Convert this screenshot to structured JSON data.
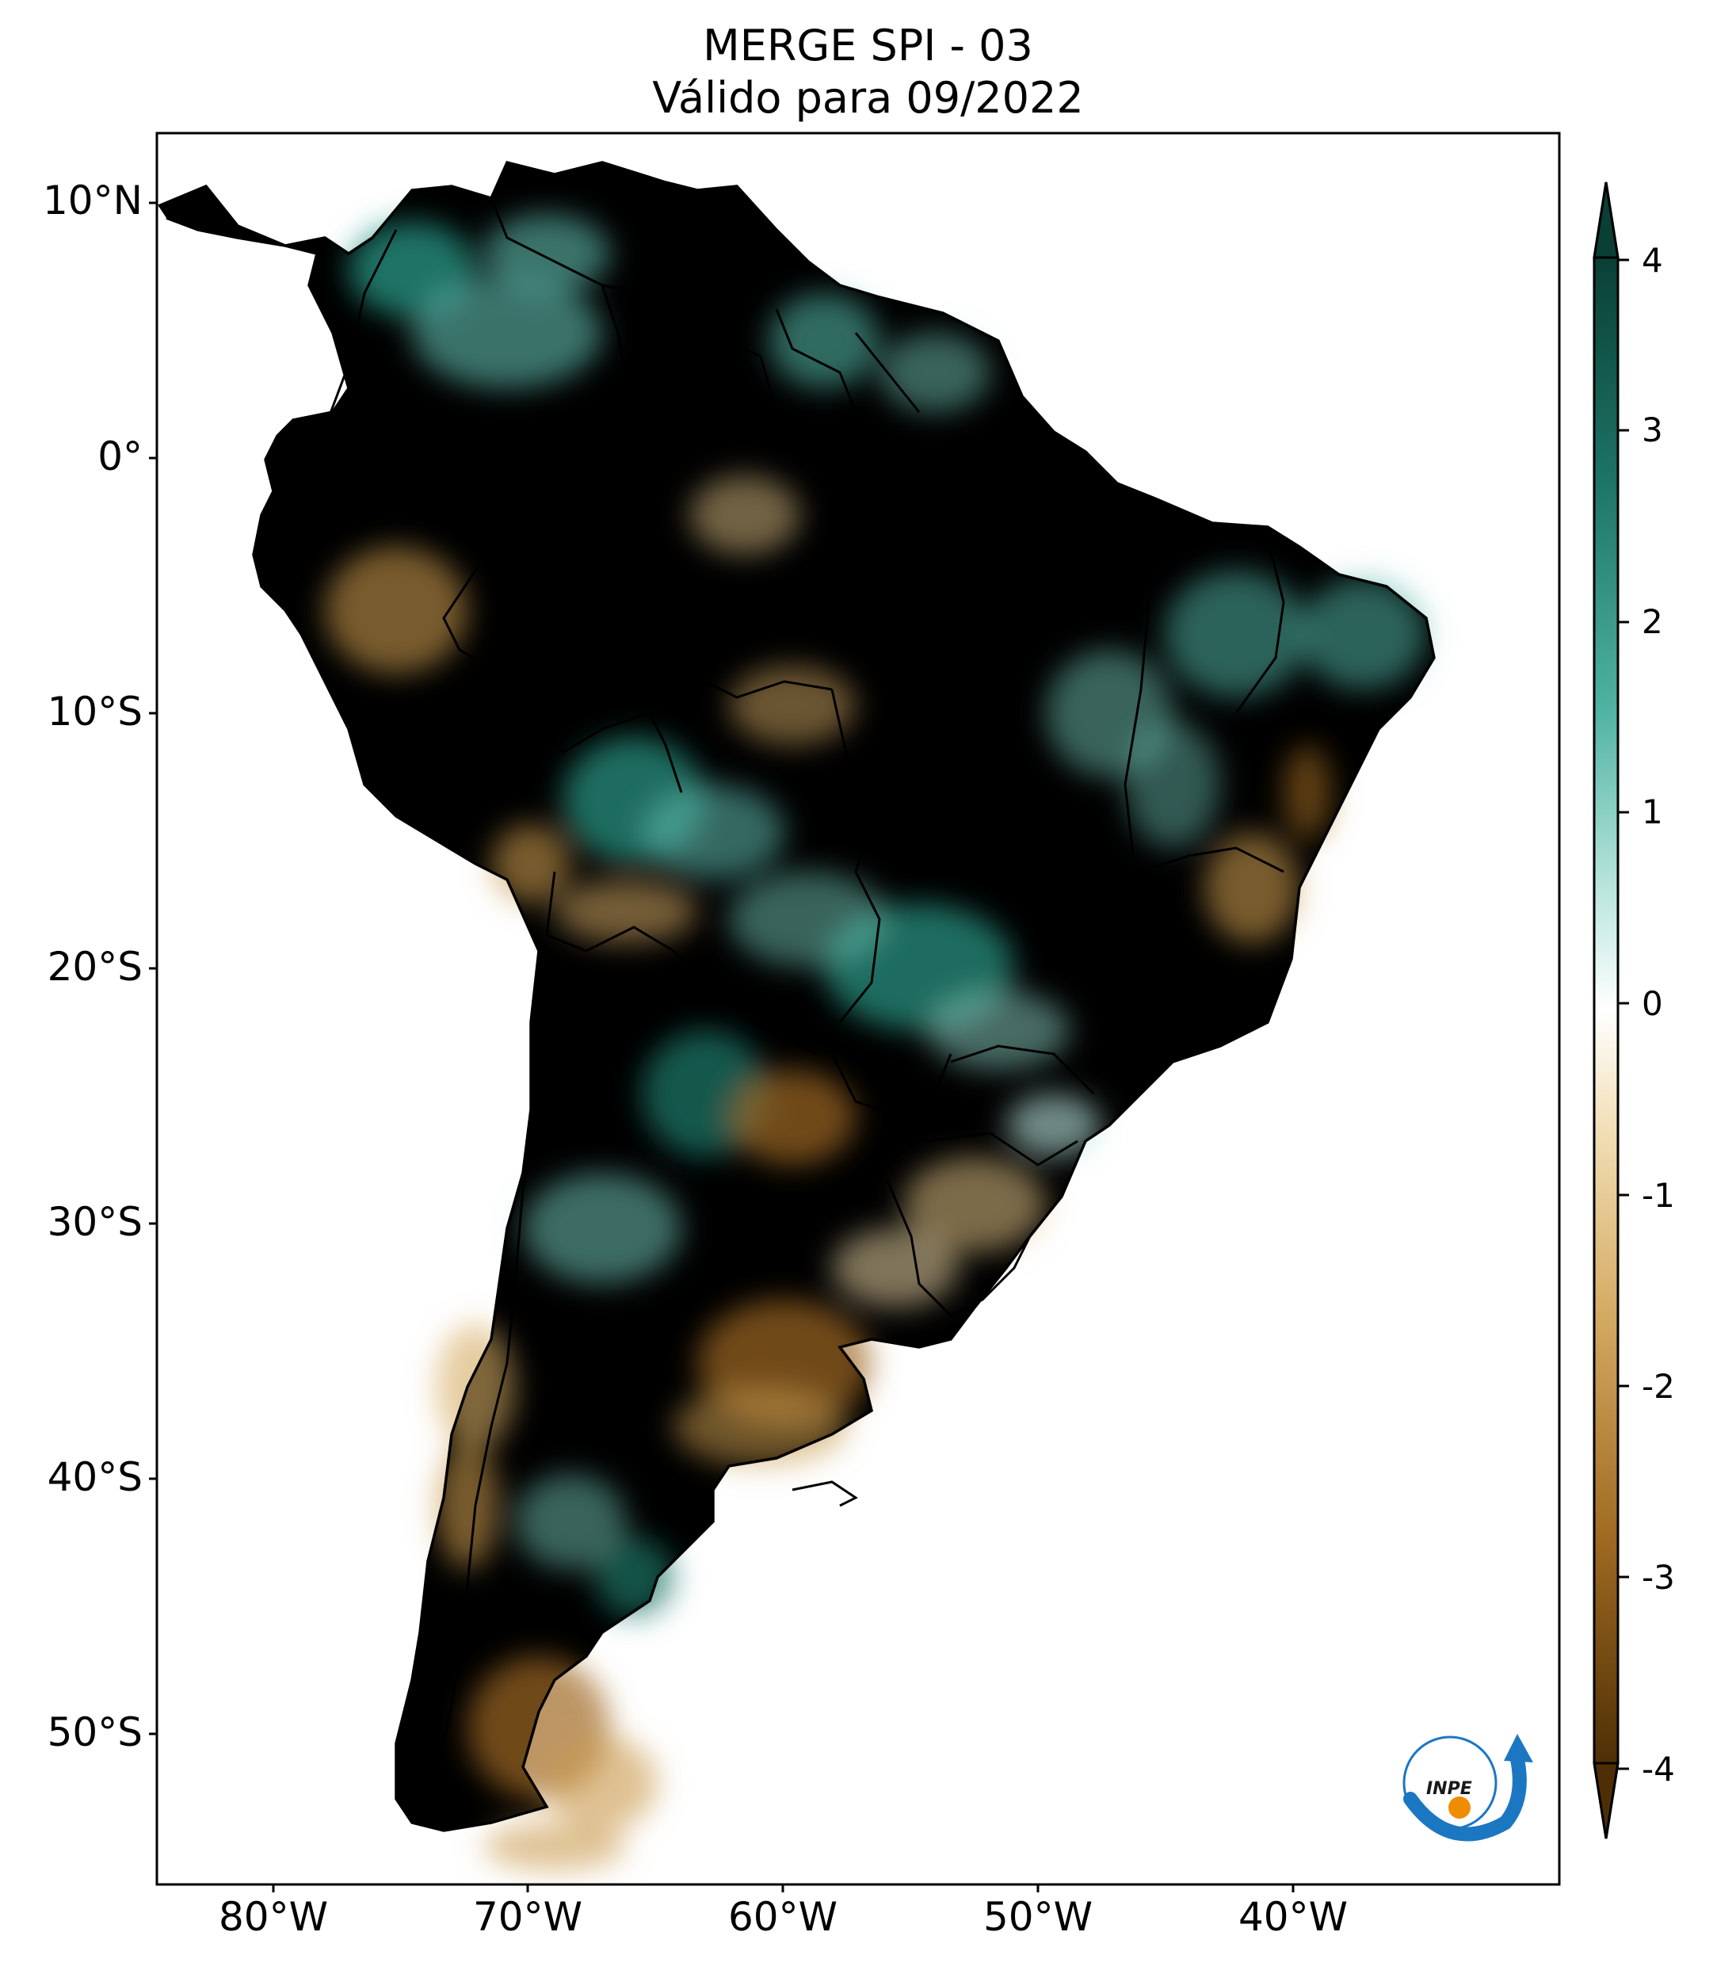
{
  "title": {
    "line1": "MERGE   SPI - 03",
    "line2": "Válido para 09/2022"
  },
  "axes": {
    "lat_labels": [
      "10°N",
      "0°",
      "10°S",
      "20°S",
      "30°S",
      "40°S",
      "50°S"
    ],
    "lon_labels": [
      "80°W",
      "70°W",
      "60°W",
      "50°W",
      "40°W"
    ]
  },
  "colorbar": {
    "ticks": [
      "4",
      "3",
      "2",
      "1",
      "0",
      "-1",
      "-2",
      "-3",
      "-4"
    ],
    "colors": {
      "positive_max": "#0a3f36",
      "positive_mid": "#2a9a88",
      "positive_low": "#b9e6dd",
      "neutral": "#ffffff",
      "negative_low": "#f1dfb5",
      "negative_mid": "#c9994d",
      "negative_max": "#4e2f05"
    },
    "extend": "both"
  },
  "logo": {
    "text": "INPE"
  }
}
